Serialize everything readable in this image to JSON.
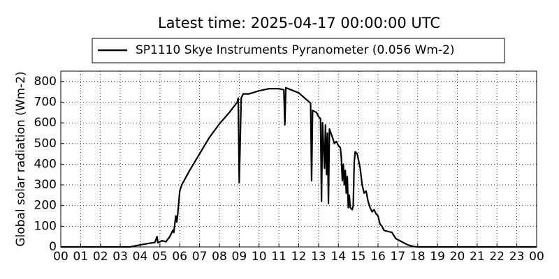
{
  "chart_data": {
    "type": "line",
    "title": "Latest time: 2025-04-17 00:00:00 UTC",
    "ylabel": "Global solar radiation (Wm-2)",
    "x": [
      0,
      3.5,
      4.0,
      4.5,
      4.75,
      4.85,
      4.9,
      5.0,
      5.1,
      5.3,
      5.5,
      5.65,
      5.7,
      5.8,
      5.85,
      5.9,
      6.0,
      6.1,
      6.5,
      7.0,
      7.5,
      8.0,
      8.5,
      8.9,
      8.95,
      9.0,
      9.1,
      9.2,
      9.5,
      10.0,
      10.5,
      11.0,
      11.25,
      11.3,
      11.35,
      11.6,
      12.0,
      12.3,
      12.6,
      12.65,
      12.7,
      12.9,
      13.0,
      13.1,
      13.15,
      13.2,
      13.3,
      13.35,
      13.4,
      13.45,
      13.5,
      13.55,
      13.7,
      13.8,
      13.9,
      14.0,
      14.1,
      14.15,
      14.2,
      14.25,
      14.3,
      14.35,
      14.4,
      14.45,
      14.5,
      14.55,
      14.6,
      14.7,
      14.75,
      14.8,
      14.85,
      14.95,
      15.1,
      15.2,
      15.3,
      15.4,
      15.5,
      15.6,
      15.7,
      15.8,
      15.9,
      16.0,
      16.1,
      16.2,
      16.3,
      16.5,
      16.7,
      16.9,
      17.2,
      17.5,
      17.8,
      18.0,
      24
    ],
    "series": [
      {
        "name": "SP1110 Skye Instruments Pyranometer (0.056 Wm-2)",
        "color": "#000000",
        "values": [
          0,
          0,
          10,
          18,
          22,
          50,
          20,
          25,
          30,
          25,
          50,
          80,
          70,
          150,
          120,
          160,
          270,
          300,
          370,
          450,
          530,
          595,
          650,
          700,
          720,
          310,
          720,
          740,
          740,
          755,
          765,
          765,
          760,
          590,
          770,
          760,
          745,
          720,
          695,
          320,
          660,
          650,
          630,
          620,
          220,
          600,
          380,
          590,
          350,
          550,
          210,
          570,
          530,
          500,
          510,
          490,
          480,
          430,
          320,
          400,
          300,
          370,
          260,
          340,
          190,
          250,
          190,
          180,
          200,
          410,
          460,
          450,
          380,
          300,
          260,
          270,
          220,
          190,
          170,
          180,
          160,
          150,
          110,
          100,
          80,
          75,
          70,
          40,
          25,
          10,
          2,
          0,
          0
        ]
      }
    ],
    "xlim": [
      0,
      24
    ],
    "xticks": [
      {
        "value": 0,
        "label": "00"
      },
      {
        "value": 1,
        "label": "01"
      },
      {
        "value": 2,
        "label": "02"
      },
      {
        "value": 3,
        "label": "03"
      },
      {
        "value": 4,
        "label": "04"
      },
      {
        "value": 5,
        "label": "05"
      },
      {
        "value": 6,
        "label": "06"
      },
      {
        "value": 7,
        "label": "07"
      },
      {
        "value": 8,
        "label": "08"
      },
      {
        "value": 9,
        "label": "09"
      },
      {
        "value": 10,
        "label": "10"
      },
      {
        "value": 11,
        "label": "11"
      },
      {
        "value": 12,
        "label": "12"
      },
      {
        "value": 13,
        "label": "13"
      },
      {
        "value": 14,
        "label": "14"
      },
      {
        "value": 15,
        "label": "15"
      },
      {
        "value": 16,
        "label": "16"
      },
      {
        "value": 17,
        "label": "17"
      },
      {
        "value": 18,
        "label": "18"
      },
      {
        "value": 19,
        "label": "19"
      },
      {
        "value": 20,
        "label": "20"
      },
      {
        "value": 21,
        "label": "21"
      },
      {
        "value": 22,
        "label": "22"
      },
      {
        "value": 23,
        "label": "23"
      },
      {
        "value": 24,
        "label": "00"
      }
    ],
    "ylim": [
      0,
      850
    ],
    "yticks": [
      0,
      100,
      200,
      300,
      400,
      500,
      600,
      700,
      800
    ],
    "grid": true,
    "legend": "top"
  }
}
